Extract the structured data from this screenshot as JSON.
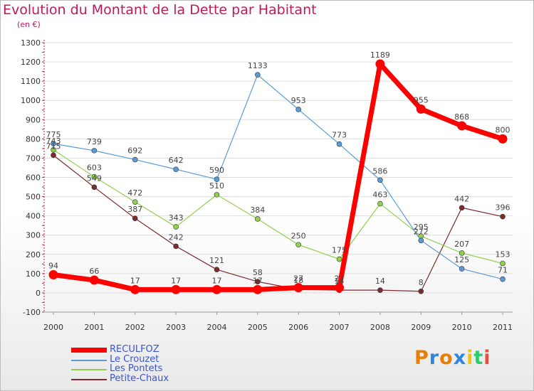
{
  "header": {
    "title": "Evolution du Montant de la Dette par Habitant",
    "subtitle": "(en €)"
  },
  "logo": {
    "text": "Proxiti",
    "letter_colors": [
      "#e87e04",
      "#2e86de",
      "#e87e04",
      "#2e86de",
      "#f1c40f",
      "#2ecc71",
      "#e74c3c"
    ]
  },
  "chart_data": {
    "type": "line",
    "title": "Evolution du Montant de la Dette par Habitant",
    "subtitle": "(en €)",
    "xlabel": "",
    "ylabel": "",
    "x": [
      "2000",
      "2001",
      "2002",
      "2003",
      "2004",
      "2005",
      "2006",
      "2007",
      "2008",
      "2009",
      "2010",
      "2011"
    ],
    "ylim": [
      -100,
      1300
    ],
    "yticks": [
      -100,
      0,
      100,
      200,
      300,
      400,
      500,
      600,
      700,
      800,
      900,
      1000,
      1100,
      1200,
      1300
    ],
    "grid": "horizontal",
    "legend_position": "bottom-left",
    "series": [
      {
        "name": "RECULFOZ",
        "color": "#ff0000",
        "values": [
          94,
          66,
          17,
          17,
          17,
          17,
          27,
          27,
          1189,
          955,
          868,
          800
        ],
        "labels": [
          "94",
          "66",
          "17",
          "17",
          "17",
          "17",
          "27",
          "27",
          "1189",
          "955",
          "868",
          "800"
        ]
      },
      {
        "name": "Le Crouzet",
        "color": "#5b9bd5",
        "values": [
          775,
          739,
          692,
          642,
          590,
          1133,
          953,
          773,
          586,
          272,
          125,
          71
        ],
        "labels": [
          "775",
          "739",
          "692",
          "642",
          "590",
          "1133",
          "953",
          "773",
          "586",
          "272",
          "125",
          "71"
        ]
      },
      {
        "name": "Les Pontets",
        "color": "#92d050",
        "values": [
          743,
          603,
          472,
          343,
          510,
          384,
          250,
          175,
          463,
          295,
          207,
          153
        ],
        "labels": [
          "743",
          "603",
          "472",
          "343",
          "510",
          "384",
          "250",
          "175",
          "463",
          "295",
          "207",
          "153"
        ]
      },
      {
        "name": "Petite-Chaux",
        "color": "#7b2c2c",
        "values": [
          715,
          549,
          387,
          242,
          121,
          58,
          18,
          14,
          14,
          8,
          442,
          396
        ],
        "labels": [
          "715",
          "549",
          "387",
          "242",
          "121",
          "58",
          "18",
          "14",
          "14",
          "8",
          "442",
          "396"
        ]
      }
    ]
  }
}
